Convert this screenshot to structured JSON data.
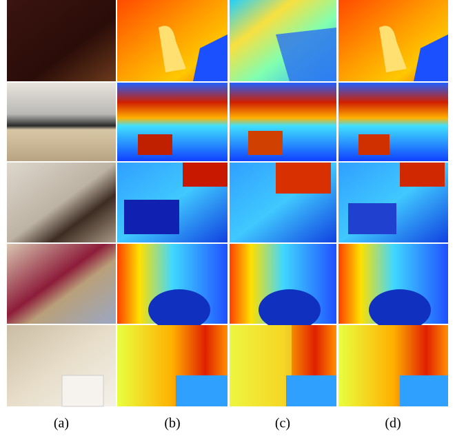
{
  "figure": {
    "columns": [
      {
        "label": "(a)"
      },
      {
        "label": "(b)"
      },
      {
        "label": "(c)"
      },
      {
        "label": "(d)"
      }
    ]
  }
}
